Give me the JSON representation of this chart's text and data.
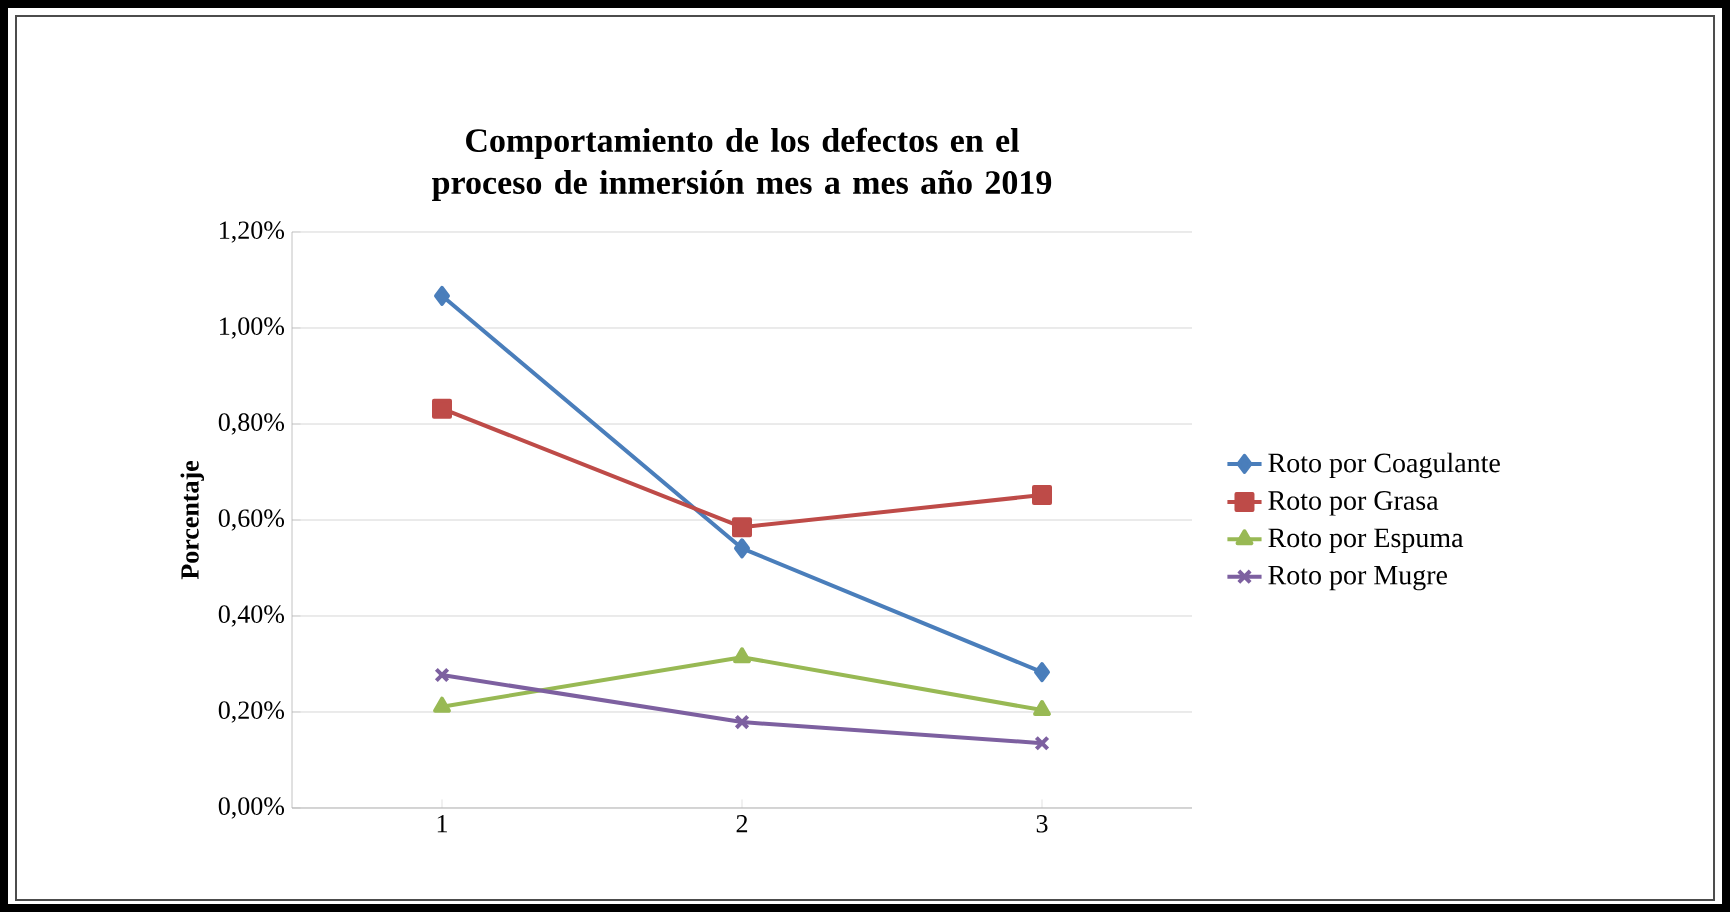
{
  "chart_data": {
    "type": "line",
    "title": "Comportamiento  de los defectos en el proceso de inmersión mes a mes año 2019",
    "ylabel": "Porcentaje",
    "categories": [
      "1",
      "2",
      "3"
    ],
    "series": [
      {
        "name": "Roto por Coagulante",
        "color": "#4a7ebb",
        "marker": "diamond",
        "values": [
          1.067,
          0.541,
          0.283
        ]
      },
      {
        "name": "Roto por Grasa",
        "color": "#be4b48",
        "marker": "square",
        "values": [
          0.832,
          0.585,
          0.652
        ]
      },
      {
        "name": "Roto por Espuma",
        "color": "#98b954",
        "marker": "triangle",
        "values": [
          0.211,
          0.314,
          0.204
        ]
      },
      {
        "name": "Roto por Mugre",
        "color": "#7d60a0",
        "marker": "cross",
        "values": [
          0.277,
          0.179,
          0.135
        ]
      }
    ],
    "ylim": [
      0,
      1.2
    ],
    "yticks": [
      {
        "value": 0,
        "label": "0,00%"
      },
      {
        "value": 0.2,
        "label": "0,20%"
      },
      {
        "value": 0.4,
        "label": "0,40%"
      },
      {
        "value": 0.6,
        "label": "0,60%"
      },
      {
        "value": 0.8,
        "label": "0,80%"
      },
      {
        "value": 1.0,
        "label": "1,00%"
      },
      {
        "value": 1.2,
        "label": "1,20%"
      }
    ],
    "grid": "y",
    "legend": "right",
    "line_style": "solid"
  }
}
